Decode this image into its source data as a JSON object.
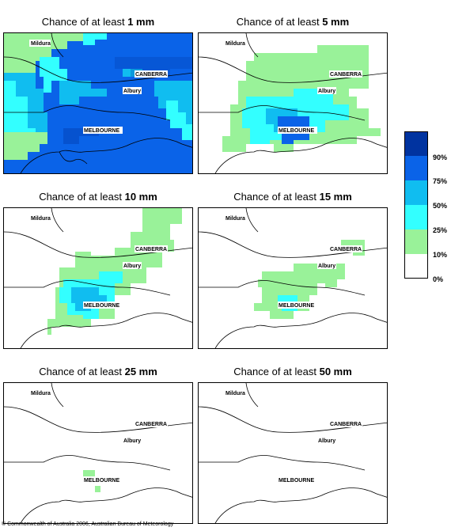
{
  "panels": [
    {
      "title_prefix": "Chance of at least",
      "threshold": "1 mm"
    },
    {
      "title_prefix": "Chance of at least",
      "threshold": "5 mm"
    },
    {
      "title_prefix": "Chance of at least",
      "threshold": "10 mm"
    },
    {
      "title_prefix": "Chance of at least",
      "threshold": "15 mm"
    },
    {
      "title_prefix": "Chance of at least",
      "threshold": "25 mm"
    },
    {
      "title_prefix": "Chance of at least",
      "threshold": "50 mm"
    }
  ],
  "cities": {
    "mildura": "Mildura",
    "canberra": "CANBERRA",
    "albury": "Albury",
    "melbourne": "MELBOURNE"
  },
  "legend": {
    "labels": [
      "90%",
      "75%",
      "50%",
      "25%",
      "10%",
      "0%"
    ],
    "colors": [
      "#0033a0",
      "#0a63e8",
      "#10bdf0",
      "#33ffff",
      "#99f299",
      "#ffffff"
    ]
  },
  "copyright": "© Commonwealth of Australia 2006, Australian Bureau of Meteorology"
}
